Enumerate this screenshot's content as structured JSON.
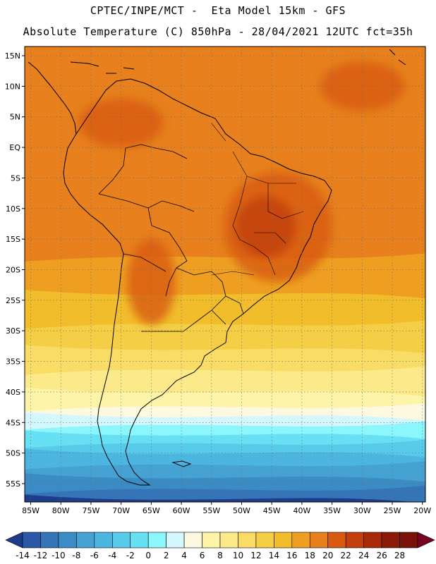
{
  "header": {
    "line1": "CPTEC/INPE/MCT -  Eta Model 15km - GFS",
    "line2": "Absolute Temperature (C) 850hPa - 28/04/2021 12UTC fct=35h"
  },
  "map": {
    "lon_range": [
      -86,
      -19.5
    ],
    "lat_range": [
      -58,
      16.5
    ],
    "lon_ticks": [
      {
        "value": -85,
        "label": "85W"
      },
      {
        "value": -80,
        "label": "80W"
      },
      {
        "value": -75,
        "label": "75W"
      },
      {
        "value": -70,
        "label": "70W"
      },
      {
        "value": -65,
        "label": "65W"
      },
      {
        "value": -60,
        "label": "60W"
      },
      {
        "value": -55,
        "label": "55W"
      },
      {
        "value": -50,
        "label": "50W"
      },
      {
        "value": -45,
        "label": "45W"
      },
      {
        "value": -40,
        "label": "40W"
      },
      {
        "value": -35,
        "label": "35W"
      },
      {
        "value": -30,
        "label": "30W"
      },
      {
        "value": -25,
        "label": "25W"
      },
      {
        "value": -20,
        "label": "20W"
      }
    ],
    "lat_ticks": [
      {
        "value": 15,
        "label": "15N"
      },
      {
        "value": 10,
        "label": "10N"
      },
      {
        "value": 5,
        "label": "5N"
      },
      {
        "value": 0,
        "label": "EQ"
      },
      {
        "value": -5,
        "label": "5S"
      },
      {
        "value": -10,
        "label": "10S"
      },
      {
        "value": -15,
        "label": "15S"
      },
      {
        "value": -20,
        "label": "20S"
      },
      {
        "value": -25,
        "label": "25S"
      },
      {
        "value": -30,
        "label": "30S"
      },
      {
        "value": -35,
        "label": "35S"
      },
      {
        "value": -40,
        "label": "40S"
      },
      {
        "value": -45,
        "label": "45S"
      },
      {
        "value": -50,
        "label": "50S"
      },
      {
        "value": -55,
        "label": "55S"
      }
    ],
    "grid": "dotted",
    "bands": [
      {
        "level": -12,
        "lat": -57.5
      },
      {
        "level": -10,
        "lat": -56
      },
      {
        "level": -8,
        "lat": -54
      },
      {
        "level": -6,
        "lat": -52
      },
      {
        "level": -4,
        "lat": -50
      },
      {
        "level": -2,
        "lat": -48.5
      },
      {
        "level": 0,
        "lat": -47
      },
      {
        "level": 2,
        "lat": -45.5
      },
      {
        "level": 4,
        "lat": -44
      },
      {
        "level": 6,
        "lat": -42.5
      },
      {
        "level": 8,
        "lat": -40
      },
      {
        "level": 10,
        "lat": -36.5
      },
      {
        "level": 12,
        "lat": -33
      },
      {
        "level": 14,
        "lat": -29
      },
      {
        "level": 16,
        "lat": -24
      },
      {
        "level": 18,
        "lat": -18
      }
    ],
    "warm_areas": [
      {
        "level": 20,
        "lon": -44,
        "lat": -13,
        "rx": 9,
        "ry": 9
      },
      {
        "level": 20,
        "lon": -70,
        "lat": 4,
        "rx": 7,
        "ry": 4
      },
      {
        "level": 20,
        "lon": -65,
        "lat": -22,
        "rx": 4,
        "ry": 7
      },
      {
        "level": 20,
        "lon": -30,
        "lat": 10,
        "rx": 7,
        "ry": 4
      },
      {
        "level": 22,
        "lon": -46,
        "lat": -13,
        "rx": 5,
        "ry": 5
      }
    ]
  },
  "colorbar": {
    "levels": [
      -16,
      -14,
      -12,
      -10,
      -8,
      -6,
      -4,
      -2,
      0,
      2,
      4,
      6,
      8,
      10,
      12,
      14,
      16,
      18,
      20,
      22,
      24,
      26,
      28,
      30
    ],
    "labels": [
      "-14",
      "-12",
      "-10",
      "-8",
      "-6",
      "-4",
      "-2",
      "0",
      "2",
      "4",
      "6",
      "8",
      "10",
      "12",
      "14",
      "16",
      "18",
      "20",
      "22",
      "24",
      "26",
      "28"
    ],
    "colors": [
      "#1e3c8c",
      "#2a58a6",
      "#3574b6",
      "#3b8bc4",
      "#45a2d2",
      "#4db6e0",
      "#58cbea",
      "#68e0f4",
      "#8bf7fc",
      "#d4f6fd",
      "#fdf8e0",
      "#fdf4a8",
      "#fbe98a",
      "#f8dc66",
      "#f4ce45",
      "#f1bd2b",
      "#ee9f22",
      "#e7801d",
      "#d85a0f",
      "#c23e0c",
      "#a8280a",
      "#8c1a08",
      "#7a1008",
      "#780022"
    ]
  }
}
